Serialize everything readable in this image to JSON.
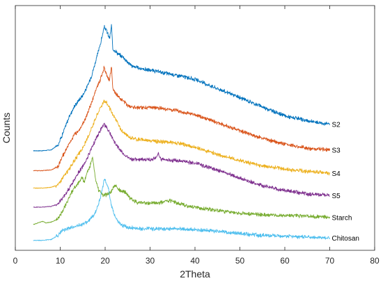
{
  "chart_data": {
    "type": "line",
    "title": "",
    "xlabel": "2Theta",
    "ylabel": "Counts",
    "xlim": [
      0,
      80
    ],
    "xticks": [
      "0",
      "10",
      "20",
      "30",
      "40",
      "50",
      "60",
      "70",
      "80"
    ],
    "yticks_shown": false,
    "grid": false,
    "legend": "none",
    "stacked_offset_profiles": true,
    "series": [
      {
        "name": "S2",
        "color": "#0072BD",
        "x": [
          4,
          6,
          8,
          9.5,
          10.5,
          12,
          13,
          14,
          15,
          16,
          17,
          18,
          19,
          19.8,
          20.3,
          21,
          21.4,
          21.7,
          22.2,
          23,
          24,
          25,
          26,
          28,
          30,
          33,
          36,
          40,
          45,
          50,
          55,
          60,
          65,
          70
        ],
        "y": [
          10.5,
          10.5,
          10.6,
          11.2,
          12.5,
          14.6,
          15.7,
          16.5,
          17.2,
          18.2,
          19.6,
          21.5,
          23.5,
          25.4,
          25.0,
          24.0,
          25.6,
          22.8,
          22.6,
          22.1,
          21.8,
          21.2,
          20.7,
          20.4,
          20.2,
          19.9,
          19.6,
          19.1,
          18.0,
          16.9,
          15.8,
          14.7,
          14.1,
          13.7
        ]
      },
      {
        "name": "S3",
        "color": "#D95319",
        "x": [
          4,
          6,
          8,
          9.5,
          10.5,
          12,
          13,
          14,
          15,
          16,
          17,
          18,
          19,
          19.8,
          20.5,
          21,
          21.4,
          21.7,
          22.2,
          23,
          24,
          25,
          26,
          28,
          30,
          33,
          36,
          40,
          45,
          50,
          55,
          60,
          65,
          70
        ],
        "y": [
          8.1,
          8.1,
          8.2,
          8.6,
          9.8,
          11.4,
          12.3,
          12.9,
          13.7,
          14.9,
          16.3,
          17.9,
          19.2,
          20.6,
          19.4,
          19.0,
          20.8,
          17.9,
          17.5,
          17.0,
          16.5,
          16.0,
          15.8,
          15.7,
          15.7,
          15.6,
          15.3,
          14.8,
          13.9,
          12.9,
          12.0,
          11.3,
          10.8,
          10.6
        ]
      },
      {
        "name": "S4",
        "color": "#EDB120",
        "x": [
          4,
          6,
          8,
          9.5,
          10.5,
          12,
          13,
          14,
          15,
          16,
          17,
          18,
          19,
          19.8,
          20.5,
          21.5,
          22.5,
          23.5,
          24.5,
          25.5,
          27,
          29,
          32,
          35,
          38,
          42,
          46,
          50,
          55,
          60,
          65,
          70
        ],
        "y": [
          6.0,
          6.0,
          6.1,
          6.4,
          7.2,
          8.3,
          9.2,
          10.0,
          10.8,
          11.9,
          13.3,
          14.6,
          15.8,
          16.5,
          16.2,
          15.0,
          14.2,
          13.0,
          12.5,
          12.1,
          11.9,
          11.8,
          11.6,
          11.5,
          11.2,
          10.6,
          9.9,
          9.3,
          8.7,
          8.3,
          8.0,
          7.8
        ]
      },
      {
        "name": "S5",
        "color": "#7E2F8E",
        "x": [
          4,
          6,
          8,
          9.5,
          10.5,
          12,
          13,
          14,
          15,
          16,
          17,
          18,
          19,
          19.8,
          20.5,
          21.5,
          22.5,
          23.5,
          24.5,
          26,
          28,
          31,
          31.8,
          32.5,
          34,
          37,
          40,
          45,
          50,
          55,
          60,
          65,
          70
        ],
        "y": [
          3.7,
          3.7,
          3.8,
          4.1,
          4.8,
          5.9,
          6.9,
          7.8,
          8.6,
          9.6,
          10.9,
          12.0,
          13.0,
          13.7,
          13.2,
          12.1,
          11.2,
          10.5,
          9.9,
          9.5,
          9.4,
          9.5,
          10.1,
          9.5,
          9.4,
          9.3,
          9.0,
          8.2,
          7.2,
          6.3,
          5.7,
          5.3,
          5.1
        ]
      },
      {
        "name": "Starch",
        "color": "#77AC30",
        "x": [
          4,
          5,
          6,
          6.8,
          8,
          9.5,
          10.5,
          12,
          13,
          14,
          14.8,
          15.4,
          16,
          16.6,
          17.2,
          17.8,
          18.5,
          19.5,
          20.5,
          21.5,
          22.2,
          23,
          23.8,
          24.5,
          25.5,
          27,
          29,
          32,
          34.5,
          36,
          38,
          40,
          45,
          50,
          55,
          60,
          65,
          70
        ],
        "y": [
          1.6,
          1.8,
          2.0,
          1.8,
          1.9,
          2.3,
          3.2,
          4.9,
          5.9,
          6.6,
          7.2,
          6.8,
          7.9,
          8.6,
          9.8,
          7.3,
          5.8,
          5.2,
          5.2,
          5.7,
          6.4,
          5.8,
          5.6,
          5.5,
          4.8,
          4.3,
          4.2,
          4.2,
          4.5,
          4.2,
          3.9,
          3.7,
          3.3,
          3.0,
          2.8,
          2.7,
          2.6,
          2.5
        ]
      },
      {
        "name": "Chitosan",
        "color": "#4DBEEE",
        "x": [
          4,
          6,
          8,
          9.5,
          10.5,
          12,
          14,
          16,
          17.5,
          18.5,
          19.3,
          19.9,
          20.6,
          21.3,
          22,
          23,
          24,
          25,
          26,
          28,
          30,
          33,
          36,
          40,
          45,
          50,
          55,
          60,
          65,
          70
        ],
        "y": [
          -0.3,
          -0.3,
          -0.2,
          0.3,
          0.9,
          1.2,
          1.5,
          1.9,
          2.7,
          4.0,
          5.8,
          7.1,
          6.2,
          4.2,
          2.8,
          1.9,
          1.5,
          1.3,
          1.2,
          1.1,
          1.1,
          1.1,
          1.1,
          1.0,
          0.8,
          0.5,
          0.3,
          0.2,
          0.1,
          0.0
        ]
      }
    ]
  }
}
